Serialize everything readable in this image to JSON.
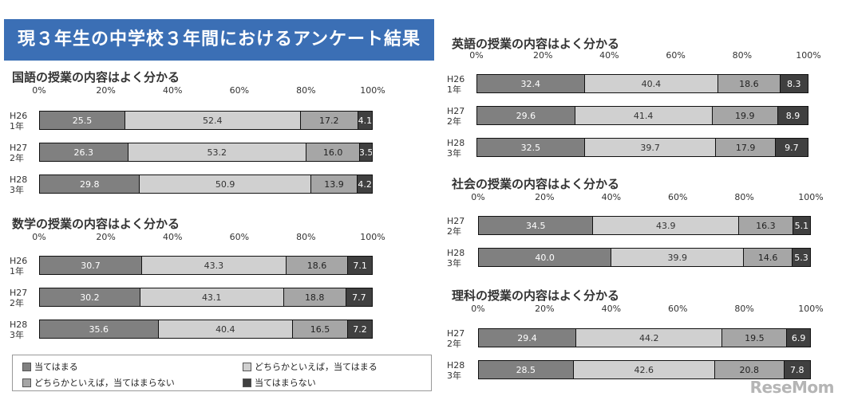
{
  "header": {
    "title": "現３年生の中学校３年間におけるアンケート結果"
  },
  "axis_ticks": [
    "0%",
    "20%",
    "40%",
    "60%",
    "80%",
    "100%"
  ],
  "legend": {
    "items": [
      {
        "label": "当てはまる",
        "color": "#808080"
      },
      {
        "label": "どちらかといえば，当てはまる",
        "color": "#d0d0d0"
      },
      {
        "label": "どちらかといえば，当てはまらない",
        "color": "#a6a6a6"
      },
      {
        "label": "当てはまらない",
        "color": "#404040"
      }
    ]
  },
  "watermark": "ReseMom",
  "chart_data": [
    {
      "type": "bar",
      "stacked": true,
      "orientation": "horizontal",
      "title": "国語の授業の内容はよく分かる",
      "categories": [
        "H26\n1年",
        "H27\n2年",
        "H28\n3年"
      ],
      "xlim": [
        0,
        100
      ],
      "series": [
        {
          "name": "当てはまる",
          "values": [
            25.5,
            26.3,
            29.8
          ]
        },
        {
          "name": "どちらかといえば，当てはまる",
          "values": [
            52.4,
            53.2,
            50.9
          ]
        },
        {
          "name": "どちらかといえば，当てはまらない",
          "values": [
            17.2,
            16.0,
            13.9
          ]
        },
        {
          "name": "当てはまらない",
          "values": [
            4.1,
            3.5,
            4.2
          ]
        }
      ]
    },
    {
      "type": "bar",
      "stacked": true,
      "orientation": "horizontal",
      "title": "数学の授業の内容はよく分かる",
      "categories": [
        "H26\n1年",
        "H27\n2年",
        "H28\n3年"
      ],
      "xlim": [
        0,
        100
      ],
      "series": [
        {
          "name": "当てはまる",
          "values": [
            30.7,
            30.2,
            35.6
          ]
        },
        {
          "name": "どちらかといえば，当てはまる",
          "values": [
            43.3,
            43.1,
            40.4
          ]
        },
        {
          "name": "どちらかといえば，当てはまらない",
          "values": [
            18.6,
            18.8,
            16.5
          ]
        },
        {
          "name": "当てはまらない",
          "values": [
            7.1,
            7.7,
            7.2
          ]
        }
      ]
    },
    {
      "type": "bar",
      "stacked": true,
      "orientation": "horizontal",
      "title": "英語の授業の内容はよく分かる",
      "categories": [
        "H26\n1年",
        "H27\n2年",
        "H28\n3年"
      ],
      "xlim": [
        0,
        100
      ],
      "series": [
        {
          "name": "当てはまる",
          "values": [
            32.4,
            29.6,
            32.5
          ]
        },
        {
          "name": "どちらかといえば，当てはまる",
          "values": [
            40.4,
            41.4,
            39.7
          ]
        },
        {
          "name": "どちらかといえば，当てはまらない",
          "values": [
            18.6,
            19.9,
            17.9
          ]
        },
        {
          "name": "当てはまらない",
          "values": [
            8.3,
            8.9,
            9.7
          ]
        }
      ]
    },
    {
      "type": "bar",
      "stacked": true,
      "orientation": "horizontal",
      "title": "社会の授業の内容はよく分かる",
      "categories": [
        "H27\n2年",
        "H28\n3年"
      ],
      "xlim": [
        0,
        100
      ],
      "series": [
        {
          "name": "当てはまる",
          "values": [
            34.5,
            40.0
          ]
        },
        {
          "name": "どちらかといえば，当てはまる",
          "values": [
            43.9,
            39.9
          ]
        },
        {
          "name": "どちらかといえば，当てはまらない",
          "values": [
            16.3,
            14.6
          ]
        },
        {
          "name": "当てはまらない",
          "values": [
            5.1,
            5.3
          ]
        }
      ]
    },
    {
      "type": "bar",
      "stacked": true,
      "orientation": "horizontal",
      "title": "理科の授業の内容はよく分かる",
      "categories": [
        "H27\n2年",
        "H28\n3年"
      ],
      "xlim": [
        0,
        100
      ],
      "series": [
        {
          "name": "当てはまる",
          "values": [
            29.4,
            28.5
          ]
        },
        {
          "name": "どちらかといえば，当てはまる",
          "values": [
            44.2,
            42.6
          ]
        },
        {
          "name": "どちらかといえば，当てはまらない",
          "values": [
            19.5,
            20.8
          ]
        },
        {
          "name": "当てはまらない",
          "values": [
            6.9,
            7.8
          ]
        }
      ]
    }
  ]
}
